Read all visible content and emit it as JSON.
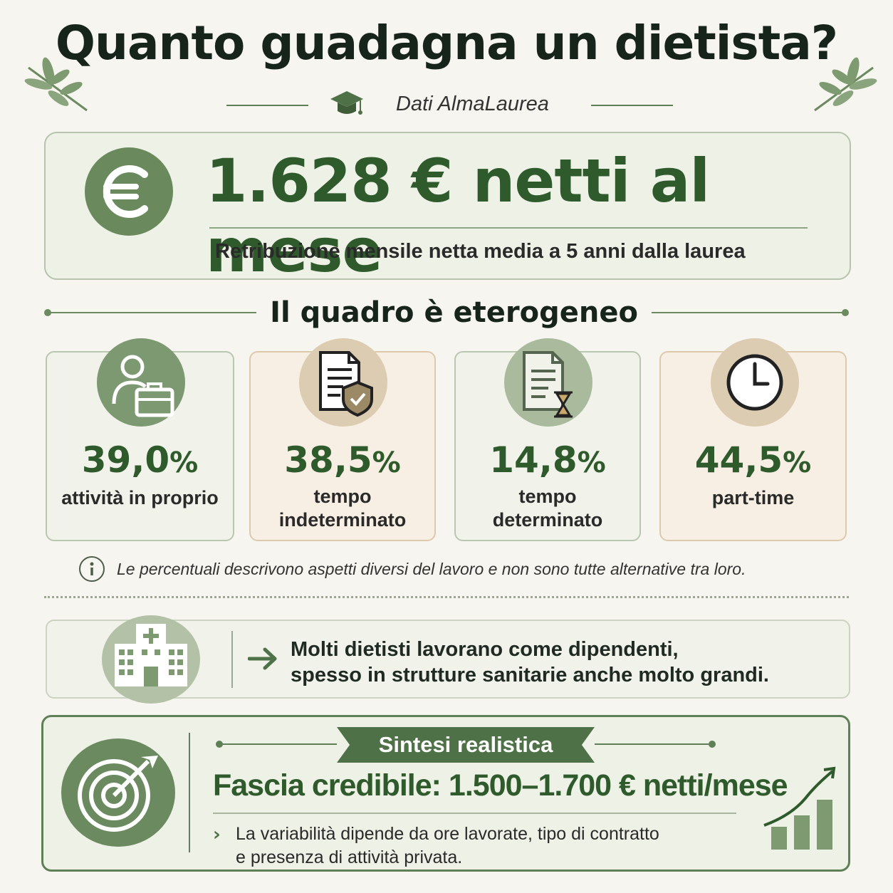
{
  "header": {
    "title": "Quanto guadagna un dietista?",
    "source": "Dati AlmaLaurea"
  },
  "hero": {
    "value": "1.628 € netti al mese",
    "subtitle": "Retribuzione mensile netta media a 5 anni dalla laurea",
    "icon": "euro-icon"
  },
  "section": {
    "title": "Il quadro è eterogeneo"
  },
  "stats": [
    {
      "value": "39,0",
      "unit": "%",
      "label": "attività in proprio",
      "icon": "self-employed-icon"
    },
    {
      "value": "38,5",
      "unit": "%",
      "label_line1": "tempo",
      "label_line2": "indeterminato",
      "icon": "contract-shield-icon"
    },
    {
      "value": "14,8",
      "unit": "%",
      "label_line1": "tempo",
      "label_line2": "determinato",
      "icon": "contract-hourglass-icon"
    },
    {
      "value": "44,5",
      "unit": "%",
      "label": "part-time",
      "icon": "clock-icon"
    }
  ],
  "note": {
    "text": "Le percentuali descrivono aspetti diversi del lavoro e non sono tutte alternative tra loro."
  },
  "employees": {
    "line1": "Molti dietisti lavorano come dipendenti,",
    "line2": "spesso in strutture sanitarie anche molto grandi."
  },
  "summary": {
    "ribbon": "Sintesi realistica",
    "main": "Fascia credibile: 1.500–1.700 € netti/mese",
    "detail_line1": "La variabilità dipende da ore lavorate, tipo di contratto",
    "detail_line2": "e presenza di attività privata."
  },
  "colors": {
    "accent": "#2f5a2c",
    "sage": "#6b8a5f",
    "beige": "#dcccb1",
    "background": "#f7f5ef"
  }
}
